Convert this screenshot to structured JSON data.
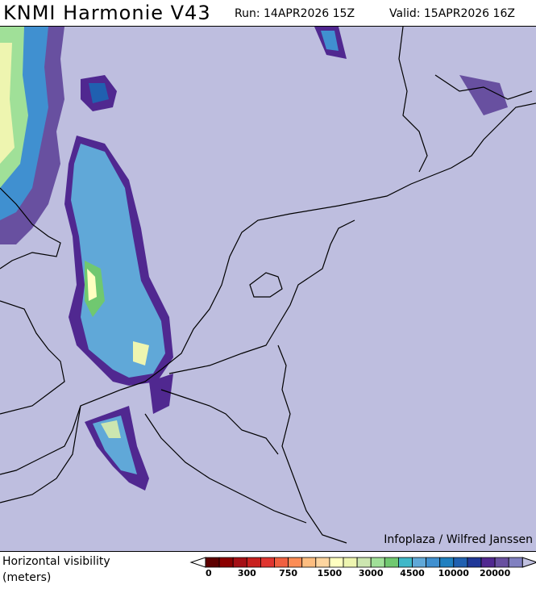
{
  "header": {
    "title": "KNMI Harmonie V43",
    "run": "Run: 14APR2026 15Z",
    "valid": "Valid: 15APR2026 16Z"
  },
  "map": {
    "background_color": "#bebedf",
    "credit": "Infoplaza / Wilfred Janssen"
  },
  "legend": {
    "label_line1": "Horizontal visibility",
    "label_line2": "(meters)",
    "colors": [
      "#5e0000",
      "#8b0000",
      "#a50f15",
      "#c8201e",
      "#e03530",
      "#f06040",
      "#fb8c55",
      "#fdbd80",
      "#fdd5a0",
      "#ffffc0",
      "#eef5b0",
      "#cce6b0",
      "#a0e098",
      "#70c870",
      "#40b8c8",
      "#60a8d8",
      "#4090d0",
      "#2080c0",
      "#2060b0",
      "#203898",
      "#502890",
      "#6850a0",
      "#8080c0"
    ],
    "ticks": [
      "0",
      "300",
      "750",
      "1500",
      "3000",
      "4500",
      "10000",
      "20000"
    ]
  }
}
